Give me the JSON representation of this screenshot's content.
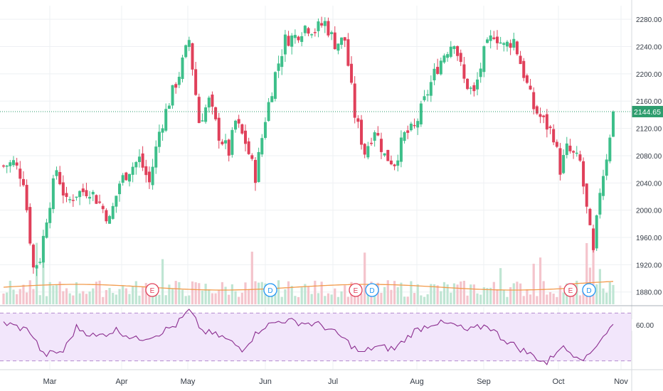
{
  "chart_data": {
    "type": "candlestick",
    "title": "",
    "price_axis": {
      "ylim": [
        1862,
        2300
      ],
      "ticks": [
        "2280.00",
        "2240.00",
        "2200.00",
        "2160.00",
        "2120.00",
        "2080.00",
        "2040.00",
        "2000.00",
        "1960.00",
        "1920.00",
        "1880.00"
      ],
      "tick_values": [
        2280,
        2240,
        2200,
        2160,
        2120,
        2080,
        2040,
        2000,
        1960,
        1920,
        1880
      ]
    },
    "x_axis": {
      "labels": [
        "Mar",
        "Apr",
        "May",
        "Jun",
        "Jul",
        "Aug",
        "Sep",
        "Oct",
        "Nov"
      ]
    },
    "last_price": {
      "label": "2144.65",
      "value": 2144.65
    },
    "close_series_key_points": [
      {
        "x": "Feb (early)",
        "y": 2065
      },
      {
        "x": "Feb (low)",
        "y": 1915
      },
      {
        "x": "Mar",
        "y": 2025
      },
      {
        "x": "Apr (mid)",
        "y": 2030
      },
      {
        "x": "May (peak)",
        "y": 2245
      },
      {
        "x": "May (late)",
        "y": 2085
      },
      {
        "x": "Jun (low)",
        "y": 2045
      },
      {
        "x": "Jun-Jul (peak)",
        "y": 2270
      },
      {
        "x": "Jul (low)",
        "y": 2075
      },
      {
        "x": "Aug (peak)",
        "y": 2260
      },
      {
        "x": "Sep (early)",
        "y": 2245
      },
      {
        "x": "Oct (low)",
        "y": 1935
      },
      {
        "x": "Oct (end)",
        "y": 2144.65
      }
    ],
    "event_markers": [
      {
        "type": "E",
        "color": "#e0405a"
      },
      {
        "type": "D",
        "color": "#2196f3"
      },
      {
        "type": "E",
        "color": "#e0405a"
      },
      {
        "type": "D",
        "color": "#2196f3"
      },
      {
        "type": "E",
        "color": "#e0405a"
      },
      {
        "type": "D",
        "color": "#2196f3"
      }
    ],
    "rsi": {
      "label": "60.00",
      "level": 60,
      "upper_band": 70,
      "lower_band": 30,
      "ylim": [
        25,
        75
      ]
    },
    "colors": {
      "up": "#3dbf8a",
      "down": "#e0405a",
      "volume_ma": "#f29a4a",
      "rsi_line": "#8b2d8f",
      "rsi_band_fill": "#f2e6fb",
      "price_line": "#2e9d6e",
      "grid": "#eef0f3"
    }
  }
}
